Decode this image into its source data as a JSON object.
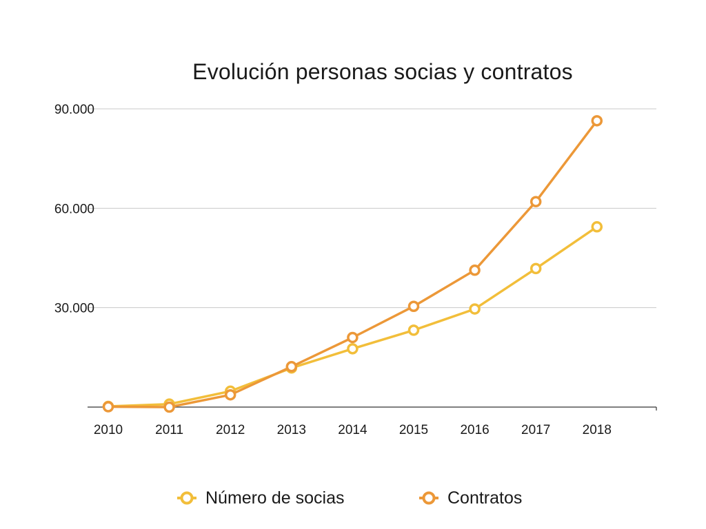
{
  "chart_data": {
    "type": "line",
    "title": "Evolución personas socias y contratos",
    "categories": [
      "2010",
      "2011",
      "2012",
      "2013",
      "2014",
      "2015",
      "2016",
      "2017",
      "2018"
    ],
    "y_tick_labels": [
      "30.000",
      "60.000",
      "90.000"
    ],
    "y_ticks": [
      30000,
      60000,
      90000
    ],
    "ylim": [
      0,
      90000
    ],
    "grid": true,
    "legend_position": "bottom",
    "series": [
      {
        "name": "Número de socias",
        "color": "#F2BE3A",
        "values": [
          200,
          900,
          4800,
          11800,
          17600,
          23200,
          29600,
          41800,
          54400
        ]
      },
      {
        "name": "Contratos",
        "color": "#EC9838",
        "values": [
          100,
          0,
          3700,
          12200,
          21000,
          30400,
          41300,
          62000,
          86400
        ]
      }
    ]
  }
}
